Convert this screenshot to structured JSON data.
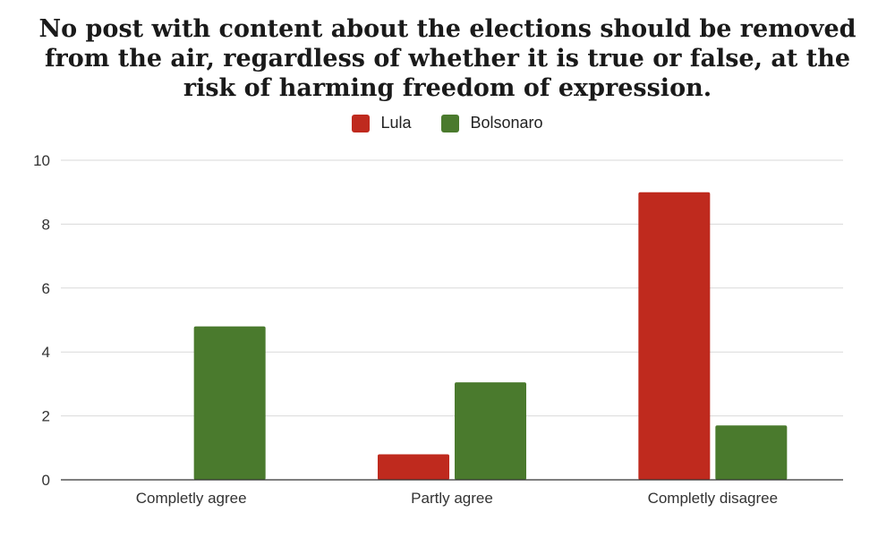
{
  "chart_data": {
    "type": "bar",
    "title": "No post with content about the elections should be removed from the air, regardless of whether it is true or false, at the risk of harming freedom of expression.",
    "categories": [
      "Completly agree",
      "Partly agree",
      "Completly disagree"
    ],
    "series": [
      {
        "name": "Lula",
        "color": "#bf2a1e",
        "values": [
          0,
          0.8,
          9
        ]
      },
      {
        "name": "Bolsonaro",
        "color": "#4a7a2d",
        "values": [
          4.8,
          3.05,
          1.7
        ]
      }
    ],
    "ylim": [
      0,
      10
    ],
    "yticks": [
      0,
      2,
      4,
      6,
      8,
      10
    ],
    "xlabel": "",
    "ylabel": "",
    "grid": true,
    "legend_position": "top-center"
  }
}
